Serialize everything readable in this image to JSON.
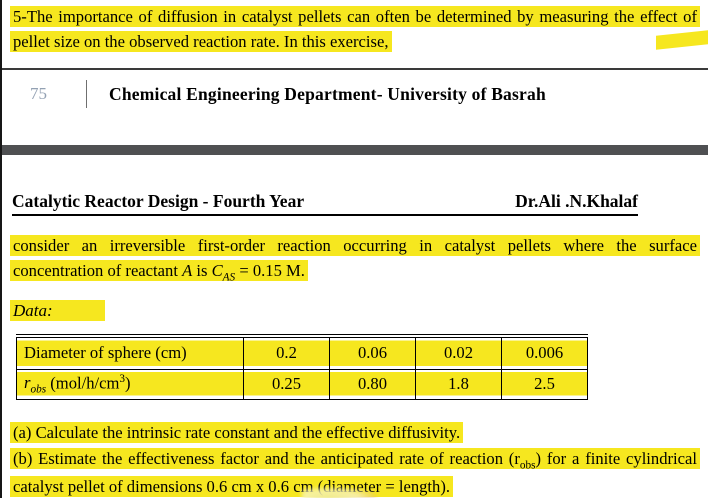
{
  "doc": {
    "top_note": "5-The importance of diffusion in catalyst pellets can often be determined by measuring the effect of pellet size on the observed reaction rate. In this exercise,",
    "header": {
      "page_number": "75",
      "title": "Chemical Engineering Department- University of Basrah"
    },
    "course_line": {
      "title": "Catalytic Reactor Design - Fourth Year",
      "instructor": "Dr.Ali .N.Khalaf"
    },
    "intro": {
      "part1": "consider an irreversible first-order reaction occurring in catalyst pellets where the surface concentration of reactant ",
      "reactant": "A",
      "part2": " is ",
      "conc_symbol": "C",
      "conc_sub": "AS",
      "part3": " = 0.15 M."
    },
    "data_label": "Data:",
    "table": {
      "rows": [
        {
          "label": "Diameter of sphere (cm)",
          "values": [
            "0.2",
            "0.06",
            "0.02",
            "0.006"
          ]
        },
        {
          "label_sym": "r",
          "label_sub": "obs",
          "label_rest1": " (mol/h/cm",
          "label_sup": "3",
          "label_rest2": ")",
          "values": [
            "0.25",
            "0.80",
            "1.8",
            "2.5"
          ]
        }
      ]
    },
    "questions": {
      "a": "(a) Calculate the intrinsic rate constant and the effective diffusivity.",
      "b1": "(b) Estimate the effectiveness factor and the anticipated rate of reaction (r",
      "b_sub": "obs",
      "b2": ") for a finite cylindrical catalyst pellet of dimensions 0.6 cm x 0.6 cm (diameter = length)."
    },
    "colors": {
      "highlight": "#f6e71f",
      "divider_bar": "#4f5052",
      "page_number": "#93a1b3"
    }
  }
}
